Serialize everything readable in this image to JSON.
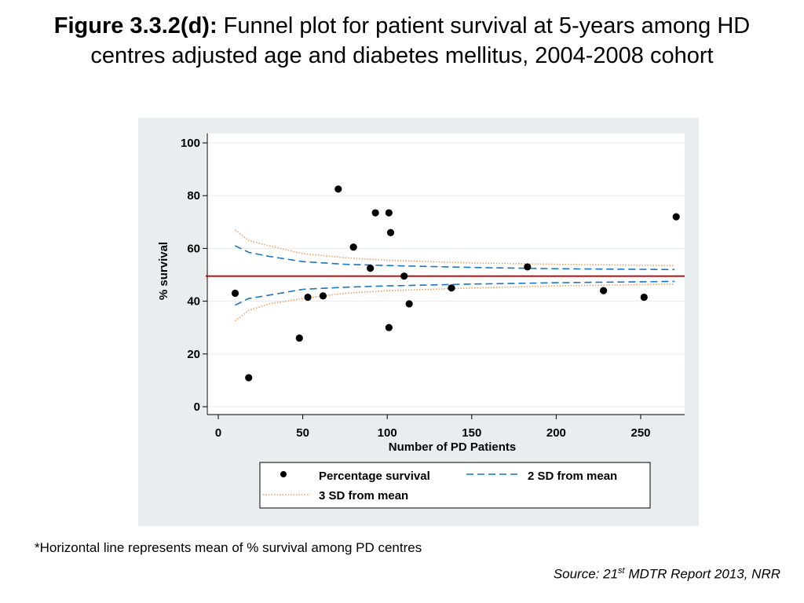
{
  "header": {
    "title_bold": "Figure 3.3.2(d):",
    "title_rest": " Funnel plot for patient survival at 5-years among HD centres adjusted age and diabetes mellitus, 2004-2008 cohort"
  },
  "footnote": "*Horizontal line represents  mean of % survival among PD centres",
  "source": {
    "prefix": "Source: 21",
    "sup": "st",
    "suffix": " MDTR Report 2013, NRR"
  },
  "chart_data": {
    "type": "scatter",
    "xlabel": "Number of PD Patients",
    "ylabel": "% survival",
    "xlim": [
      -5,
      275
    ],
    "ylim": [
      -3,
      103
    ],
    "xticks": [
      0,
      50,
      100,
      150,
      200,
      250
    ],
    "yticks": [
      0,
      20,
      40,
      60,
      80,
      100
    ],
    "grid": true,
    "mean": 49.5,
    "points": [
      [
        10,
        43
      ],
      [
        18,
        11
      ],
      [
        48,
        26
      ],
      [
        53,
        41.5
      ],
      [
        62,
        42
      ],
      [
        71,
        82.5
      ],
      [
        80,
        60.5
      ],
      [
        90,
        52.5
      ],
      [
        93,
        73.5
      ],
      [
        101,
        73.5
      ],
      [
        101,
        30
      ],
      [
        102,
        66
      ],
      [
        110,
        49.5
      ],
      [
        113,
        39
      ],
      [
        138,
        45
      ],
      [
        183,
        53
      ],
      [
        228,
        44
      ],
      [
        252,
        41.5
      ],
      [
        271,
        72
      ]
    ],
    "upper_2sd": [
      [
        10,
        61
      ],
      [
        18,
        58.5
      ],
      [
        30,
        57
      ],
      [
        50,
        55
      ],
      [
        75,
        54
      ],
      [
        100,
        53.5
      ],
      [
        150,
        52.8
      ],
      [
        200,
        52.3
      ],
      [
        270,
        52
      ]
    ],
    "lower_2sd": [
      [
        10,
        38.5
      ],
      [
        18,
        41
      ],
      [
        30,
        42.3
      ],
      [
        50,
        44.5
      ],
      [
        75,
        45.3
      ],
      [
        100,
        45.8
      ],
      [
        150,
        46.5
      ],
      [
        200,
        47
      ],
      [
        270,
        47.5
      ]
    ],
    "upper_3sd": [
      [
        10,
        67
      ],
      [
        18,
        63
      ],
      [
        30,
        61
      ],
      [
        50,
        58
      ],
      [
        75,
        56.5
      ],
      [
        100,
        55.5
      ],
      [
        150,
        54.5
      ],
      [
        200,
        54
      ],
      [
        270,
        53.5
      ]
    ],
    "lower_3sd": [
      [
        10,
        32.5
      ],
      [
        18,
        36.5
      ],
      [
        30,
        39
      ],
      [
        50,
        41
      ],
      [
        75,
        43
      ],
      [
        100,
        44
      ],
      [
        150,
        45
      ],
      [
        200,
        45.8
      ],
      [
        270,
        46.5
      ]
    ],
    "legend": {
      "placement": "bottom",
      "items": [
        {
          "label": "Percentage survival",
          "kind": "point"
        },
        {
          "label": "2 SD from mean",
          "kind": "dash"
        },
        {
          "label": "3 SD from mean",
          "kind": "dot"
        }
      ]
    },
    "colors": {
      "panel": "#e8edf0",
      "plot": "#ffffff",
      "grid": "#e8edf0",
      "mean": "#c00000",
      "sd2": "#1a75c4",
      "sd3": "#f0a060",
      "point": "#000000"
    }
  }
}
